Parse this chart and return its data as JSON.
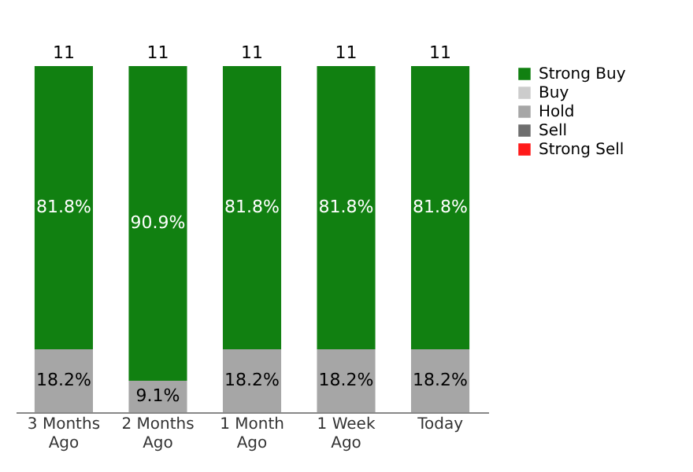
{
  "chart_data": {
    "type": "bar",
    "stacked": true,
    "categories": [
      "3 Months Ago",
      "2 Months Ago",
      "1 Month Ago",
      "1 Week Ago",
      "Today"
    ],
    "series": [
      {
        "name": "Strong Sell",
        "color": "#ff1a1a",
        "values": [
          0,
          0,
          0,
          0,
          0
        ],
        "value_labels": [
          null,
          null,
          null,
          null,
          null
        ]
      },
      {
        "name": "Sell",
        "color": "#6e6e6e",
        "values": [
          0,
          0,
          0,
          0,
          0
        ],
        "value_labels": [
          null,
          null,
          null,
          null,
          null
        ]
      },
      {
        "name": "Hold",
        "color": "#a6a6a6",
        "values": [
          18.2,
          9.1,
          18.2,
          18.2,
          18.2
        ],
        "value_labels": [
          "18.2%",
          "9.1%",
          "18.2%",
          "18.2%",
          "18.2%"
        ]
      },
      {
        "name": "Buy",
        "color": "#cccccc",
        "values": [
          0,
          0,
          0,
          0,
          0
        ],
        "value_labels": [
          null,
          null,
          null,
          null,
          null
        ]
      },
      {
        "name": "Strong Buy",
        "color": "#118011",
        "values": [
          81.8,
          90.9,
          81.8,
          81.8,
          81.8
        ],
        "value_labels": [
          "81.8%",
          "90.9%",
          "81.8%",
          "81.8%",
          "81.8%"
        ]
      }
    ],
    "annotations": [
      {
        "text": "11",
        "x": "3 Months Ago",
        "y": 100
      },
      {
        "text": "11",
        "x": "2 Months Ago",
        "y": 100
      },
      {
        "text": "11",
        "x": "1 Month Ago",
        "y": 100
      },
      {
        "text": "11",
        "x": "1 Week Ago",
        "y": 100
      },
      {
        "text": "11",
        "x": "Today",
        "y": 100
      }
    ],
    "ylim": [
      0,
      100
    ],
    "tick_labels": "x",
    "legend": "right"
  }
}
